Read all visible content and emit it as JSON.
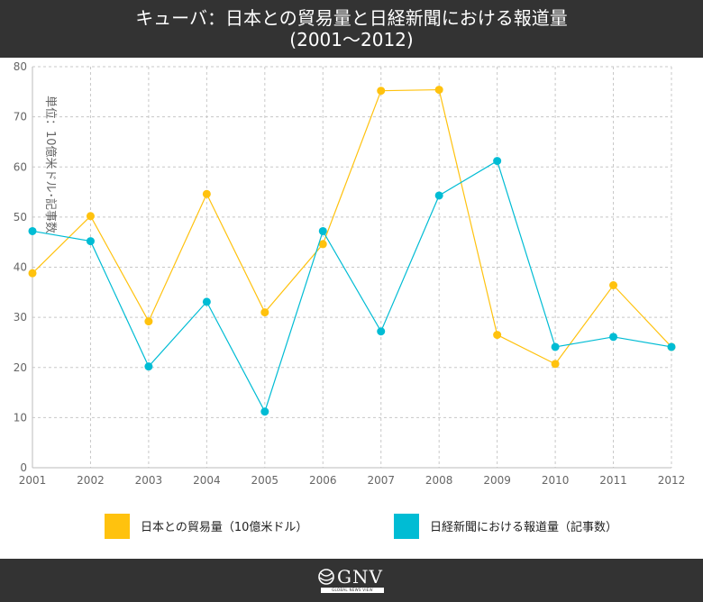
{
  "header": {
    "title_line1": "キューバ：日本との貿易量と日経新聞における報道量",
    "title_line2": "(2001～2012)"
  },
  "footer": {
    "logo_text": "GNV",
    "logo_tagline": "GLOBAL NEWS VIEW"
  },
  "chart_data": {
    "type": "line",
    "x": [
      "2001",
      "2002",
      "2003",
      "2004",
      "2005",
      "2006",
      "2007",
      "2008",
      "2009",
      "2010",
      "2011",
      "2012"
    ],
    "ylabel": "単位：10億米ドル･記事数",
    "ylim": [
      0,
      80
    ],
    "yticks": [
      0,
      10,
      20,
      30,
      40,
      50,
      60,
      70,
      80
    ],
    "grid": true,
    "legend_position": "bottom",
    "series": [
      {
        "name": "日本との貿易量（10億米ドル）",
        "color": "#FFC20E",
        "values": [
          38.8,
          50.2,
          29.2,
          54.6,
          31.0,
          44.6,
          75.2,
          75.4,
          26.5,
          20.7,
          36.4,
          24.1
        ]
      },
      {
        "name": "日経新聞における報道量（記事数）",
        "color": "#00BCD4",
        "values": [
          47.2,
          45.2,
          20.2,
          33.1,
          11.2,
          47.2,
          27.2,
          54.3,
          61.2,
          24.1,
          26.1,
          24.1
        ]
      }
    ]
  }
}
